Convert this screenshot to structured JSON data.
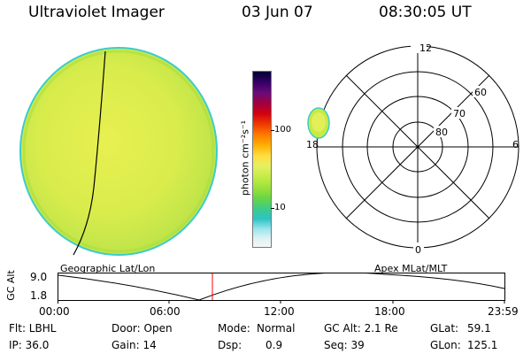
{
  "header": {
    "instrument": "Ultraviolet Imager",
    "date": "03 Jun 07",
    "time": "08:30:05 UT"
  },
  "image_panel": {
    "label": "Geographic Lat/Lon"
  },
  "colorbar": {
    "unit": "photon cm⁻²s⁻¹",
    "ticks": [
      "100",
      "10"
    ],
    "colors": [
      "#000033",
      "#330066",
      "#6a0a7a",
      "#a00040",
      "#d40010",
      "#ee3a00",
      "#ff7a00",
      "#ffb000",
      "#ffde40",
      "#e6f060",
      "#c4ec46",
      "#9ee23c",
      "#6ad642",
      "#3ccc88",
      "#2ec4c4",
      "#9ee6ee",
      "#dcf2f2",
      "#f6f6f6"
    ]
  },
  "polar_panel": {
    "label": "Apex MLat/MLT",
    "mlt_labels": {
      "top": "12",
      "right": "6",
      "bottom": "0",
      "left": "18"
    },
    "lat_labels": [
      "60",
      "70",
      "80"
    ]
  },
  "timeline": {
    "ylabel": "GC Alt",
    "ymax": "9.0",
    "ymin": "1.8",
    "xticks": [
      "00:00",
      "06:00",
      "12:00",
      "18:00",
      "23:59"
    ],
    "marker_color": "#ff0000"
  },
  "info": {
    "flt": "Flt: LBHL",
    "ip": "IP: 36.0",
    "door": "Door: Open",
    "gain": "Gain: 14",
    "mode_label": "Mode:",
    "mode_value": "Normal",
    "dsp_label": "Dsp:",
    "dsp_value": "0.9",
    "gcalt": "GC Alt: 2.1 Re",
    "seq": "Seq: 39",
    "glat_label": "GLat:",
    "glat_value": "59.1",
    "glon_label": "GLon:",
    "glon_value": "125.1"
  }
}
